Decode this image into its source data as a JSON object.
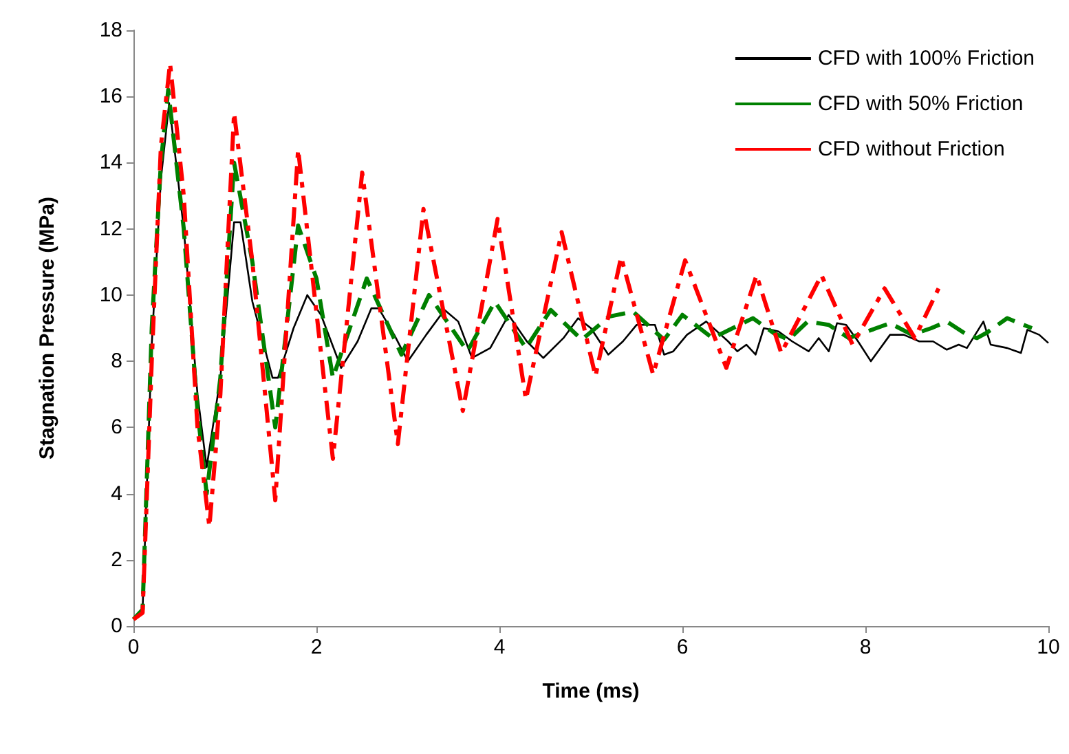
{
  "chart_data": {
    "type": "line",
    "xlabel": "Time (ms)",
    "ylabel": "Stagnation Pressure (MPa)",
    "xlim": [
      0,
      10
    ],
    "xticks": [
      0,
      2,
      4,
      6,
      8,
      10
    ],
    "ylim": [
      0,
      18
    ],
    "yticks": [
      0,
      2,
      4,
      6,
      8,
      10,
      12,
      14,
      16,
      18
    ],
    "grid": false,
    "legend": "top right",
    "marker": "none",
    "series": [
      {
        "name": "CFD with 100% Friction",
        "color": "#000000",
        "line_style": "solid",
        "x": [
          0,
          0.1,
          0.2,
          0.3,
          0.39,
          0.55,
          0.7,
          0.8,
          0.95,
          1.1,
          1.17,
          1.3,
          1.52,
          1.58,
          1.75,
          1.9,
          2.05,
          2.27,
          2.45,
          2.6,
          2.68,
          2.85,
          3.0,
          3.2,
          3.4,
          3.55,
          3.7,
          3.9,
          4.1,
          4.3,
          4.48,
          4.7,
          4.86,
          5.0,
          5.19,
          5.35,
          5.5,
          5.7,
          5.8,
          5.9,
          6.05,
          6.26,
          6.5,
          6.6,
          6.7,
          6.8,
          6.89,
          7.05,
          7.2,
          7.38,
          7.49,
          7.6,
          7.69,
          7.79,
          7.92,
          8.06,
          8.27,
          8.42,
          8.59,
          8.74,
          8.89,
          9.02,
          9.11,
          9.29,
          9.37,
          9.55,
          9.7,
          9.77,
          9.9,
          10.0
        ],
        "values": [
          0.2,
          0.5,
          8.5,
          13.5,
          15.8,
          12,
          7,
          4.8,
          7.5,
          12.2,
          12.2,
          9.8,
          7.5,
          7.5,
          9,
          10,
          9.4,
          7.8,
          8.6,
          9.6,
          9.6,
          8.8,
          8.0,
          8.8,
          9.55,
          9.2,
          8.1,
          8.4,
          9.4,
          8.6,
          8.1,
          8.7,
          9.3,
          9.0,
          8.2,
          8.6,
          9.1,
          9.1,
          8.2,
          8.3,
          8.8,
          9.2,
          8.6,
          8.3,
          8.5,
          8.2,
          9.0,
          8.9,
          8.6,
          8.3,
          8.7,
          8.3,
          9.15,
          9.1,
          8.6,
          8.0,
          8.8,
          8.8,
          8.6,
          8.6,
          8.35,
          8.5,
          8.4,
          9.2,
          8.5,
          8.4,
          8.25,
          8.95,
          8.8,
          8.55
        ]
      },
      {
        "name": "CFD with 50% Friction",
        "color": "#008000",
        "line_style": "dashed",
        "x": [
          0,
          0.1,
          0.2,
          0.3,
          0.38,
          0.55,
          0.7,
          0.8,
          0.95,
          1.1,
          1.3,
          1.55,
          1.8,
          2.0,
          2.18,
          2.55,
          2.93,
          3.23,
          3.65,
          3.95,
          4.29,
          4.56,
          4.9,
          5.2,
          5.46,
          5.8,
          6.0,
          6.33,
          6.77,
          7.0,
          7.16,
          7.37,
          7.6,
          7.82,
          7.97,
          8.27,
          8.51,
          8.72,
          8.89,
          9.11,
          9.22,
          9.32,
          9.55,
          9.82
        ],
        "values": [
          0.2,
          0.5,
          9,
          14,
          16.2,
          12,
          6.5,
          4.0,
          7.5,
          14.0,
          11,
          6.0,
          12.1,
          10.5,
          7.5,
          10.5,
          8.2,
          10.0,
          8.3,
          9.8,
          8.4,
          9.55,
          8.65,
          9.35,
          9.5,
          8.65,
          9.4,
          8.7,
          9.3,
          8.85,
          8.65,
          9.2,
          9.1,
          8.7,
          8.85,
          9.15,
          8.8,
          9.0,
          9.2,
          8.8,
          8.7,
          8.85,
          9.3,
          9.0
        ]
      },
      {
        "name": "CFD without Friction",
        "color": "#ff0000",
        "line_style": "dash-dot",
        "x": [
          0,
          0.1,
          0.2,
          0.3,
          0.4,
          0.55,
          0.7,
          0.83,
          0.95,
          1.1,
          1.3,
          1.55,
          1.8,
          2.18,
          2.5,
          2.89,
          3.17,
          3.6,
          3.98,
          4.29,
          4.68,
          5.05,
          5.33,
          5.68,
          6.03,
          6.48,
          6.81,
          7.08,
          7.52,
          7.86,
          8.21,
          8.54,
          8.8
        ],
        "values": [
          0.2,
          0.4,
          8,
          14.5,
          17,
          13,
          6,
          3.0,
          7,
          15.5,
          11,
          3.8,
          14.4,
          5.05,
          13.7,
          5.5,
          12.6,
          6.5,
          12.3,
          6.85,
          11.9,
          7.55,
          11.15,
          7.6,
          11.05,
          7.8,
          10.6,
          8.25,
          10.6,
          8.5,
          10.2,
          8.7,
          10.2
        ]
      }
    ]
  }
}
